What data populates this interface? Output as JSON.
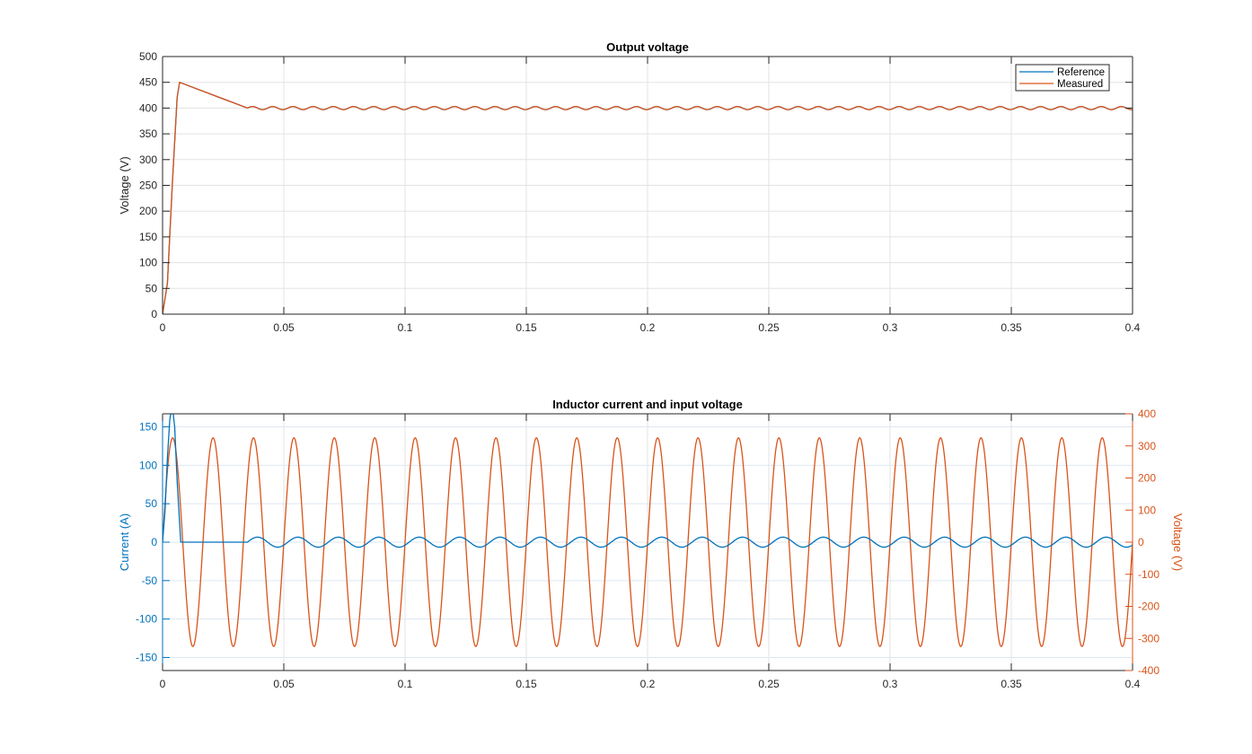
{
  "colors": {
    "blue": "#0072BD",
    "orange": "#D95319",
    "axis": "#262626",
    "grid": "#e3e3e3",
    "grid_tinted": "#dde7f2"
  },
  "chart_data": [
    {
      "type": "line",
      "title": "Output voltage",
      "xlabel": "",
      "ylabel": "Voltage (V)",
      "xlim": [
        0,
        0.4
      ],
      "ylim": [
        0,
        500
      ],
      "xticks": [
        "0",
        "0.05",
        "0.1",
        "0.15",
        "0.2",
        "0.25",
        "0.3",
        "0.35",
        "0.4"
      ],
      "yticks": [
        "0",
        "50",
        "100",
        "150",
        "200",
        "250",
        "300",
        "350",
        "400",
        "450",
        "500"
      ],
      "grid": true,
      "legend": {
        "placement": "top-right",
        "entries": [
          "Reference",
          "Measured"
        ]
      },
      "series": [
        {
          "name": "Reference",
          "color": "#0072BD",
          "x": [
            0,
            0.002,
            0.004,
            0.006,
            0.007,
            0.035
          ],
          "y": [
            0,
            60,
            250,
            420,
            450,
            400
          ],
          "steady_state": {
            "from_x": 0.035,
            "mean": 400,
            "ripple_amplitude": 3,
            "ripple_frequency_hz": 120
          }
        },
        {
          "name": "Measured",
          "color": "#D95319",
          "x": [
            0,
            0.002,
            0.004,
            0.006,
            0.007,
            0.035
          ],
          "y": [
            0,
            60,
            250,
            420,
            450,
            400
          ],
          "steady_state": {
            "from_x": 0.035,
            "mean": 400,
            "ripple_amplitude": 3,
            "ripple_frequency_hz": 120
          }
        }
      ]
    },
    {
      "type": "line",
      "title": "Inductor current and input voltage",
      "xlabel": "",
      "ylabel_left": "Current (A)",
      "ylabel_right": "Voltage (V)",
      "xlim": [
        0,
        0.4
      ],
      "ylim_left": [
        -167,
        167
      ],
      "ylim_right": [
        -400,
        400
      ],
      "xticks": [
        "0",
        "0.05",
        "0.1",
        "0.15",
        "0.2",
        "0.25",
        "0.3",
        "0.35",
        "0.4"
      ],
      "yticks_left": [
        "-150",
        "-100",
        "-50",
        "0",
        "50",
        "100",
        "150"
      ],
      "yticks_right": [
        "-400",
        "-300",
        "-200",
        "-100",
        "0",
        "100",
        "200",
        "300",
        "400"
      ],
      "grid": true,
      "series": [
        {
          "axis": "left",
          "color": "#0072BD",
          "x": [
            0,
            0.001,
            0.002,
            0.003,
            0.004,
            0.005,
            0.006,
            0.0075,
            0.035
          ],
          "y": [
            0,
            40,
            110,
            160,
            178,
            150,
            80,
            0,
            0
          ],
          "steady_state": {
            "from_x": 0.035,
            "mean": 0,
            "amplitude": 6.5,
            "frequency_hz": 60
          }
        },
        {
          "axis": "right",
          "color": "#D95319",
          "waveform": {
            "type": "sine",
            "amplitude": 325,
            "frequency_hz": 60,
            "phase_deg": 0
          }
        }
      ]
    }
  ]
}
